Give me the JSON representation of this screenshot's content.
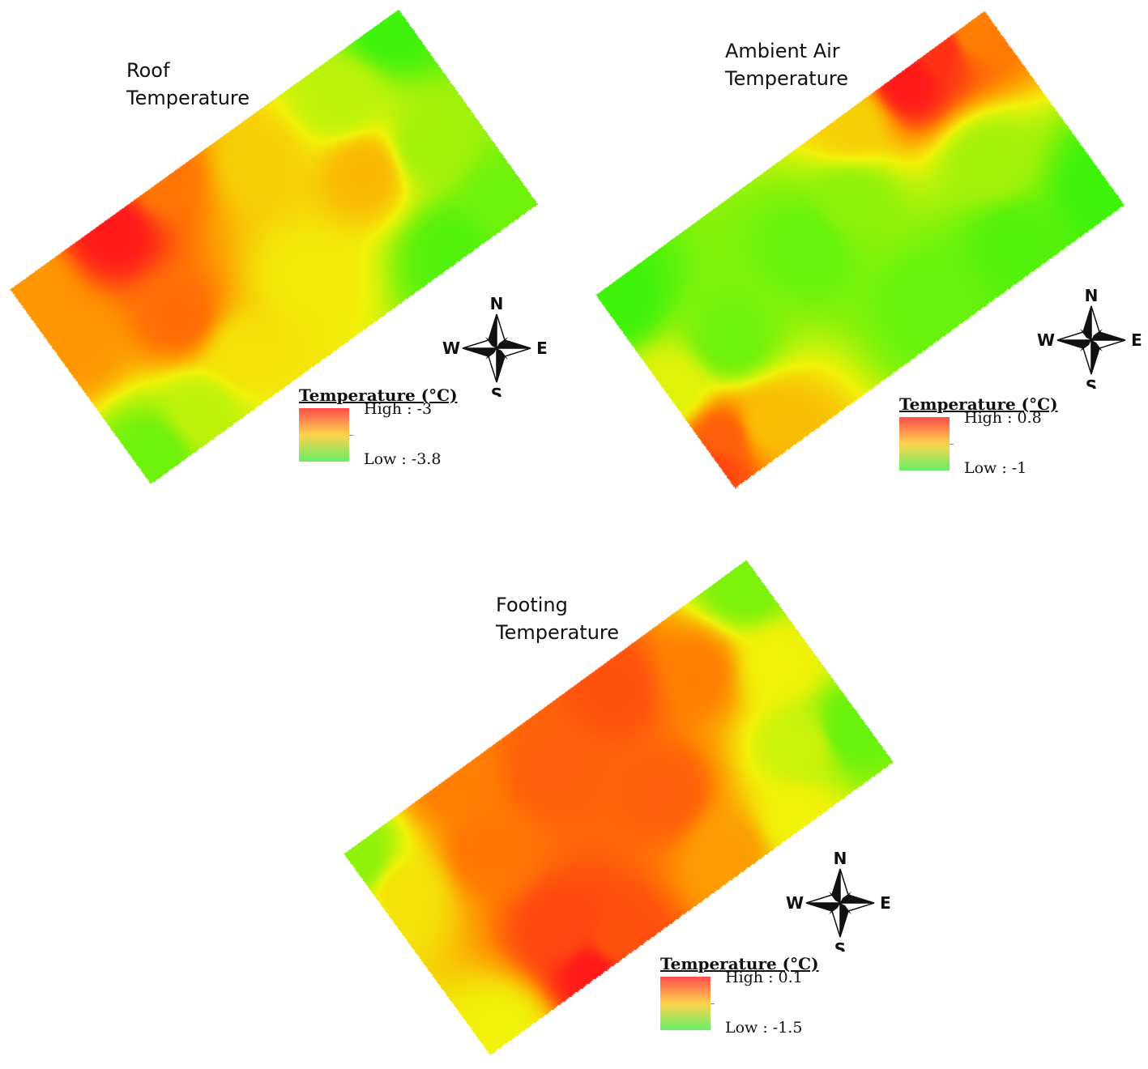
{
  "colors": {
    "high": "#ff1a1a",
    "mid_high": "#ff8c00",
    "mid": "#f2f20a",
    "low": "#3ef20a",
    "legend_high": "#ff4d4d",
    "legend_mid": "#ffd24d",
    "legend_low": "#66ef66"
  },
  "compass_labels": {
    "north": "N",
    "south": "S",
    "east": "E",
    "west": "W"
  },
  "maps": [
    {
      "id": "roof",
      "title_line1": "Roof",
      "title_line2": "Temperature",
      "legend_title": "Temperature (°C)",
      "legend_high": "High : -3",
      "legend_low": "Low : -3.8"
    },
    {
      "id": "ambient",
      "title_line1": "Ambient Air",
      "title_line2": "Temperature",
      "legend_title": "Temperature (°C)",
      "legend_high": "High : 0.8",
      "legend_low": "Low : -1"
    },
    {
      "id": "footing",
      "title_line1": "Footing",
      "title_line2": "Temperature",
      "legend_title": "Temperature (°C)",
      "legend_high": "High : 0.1",
      "legend_low": "Low : -1.5"
    }
  ]
}
